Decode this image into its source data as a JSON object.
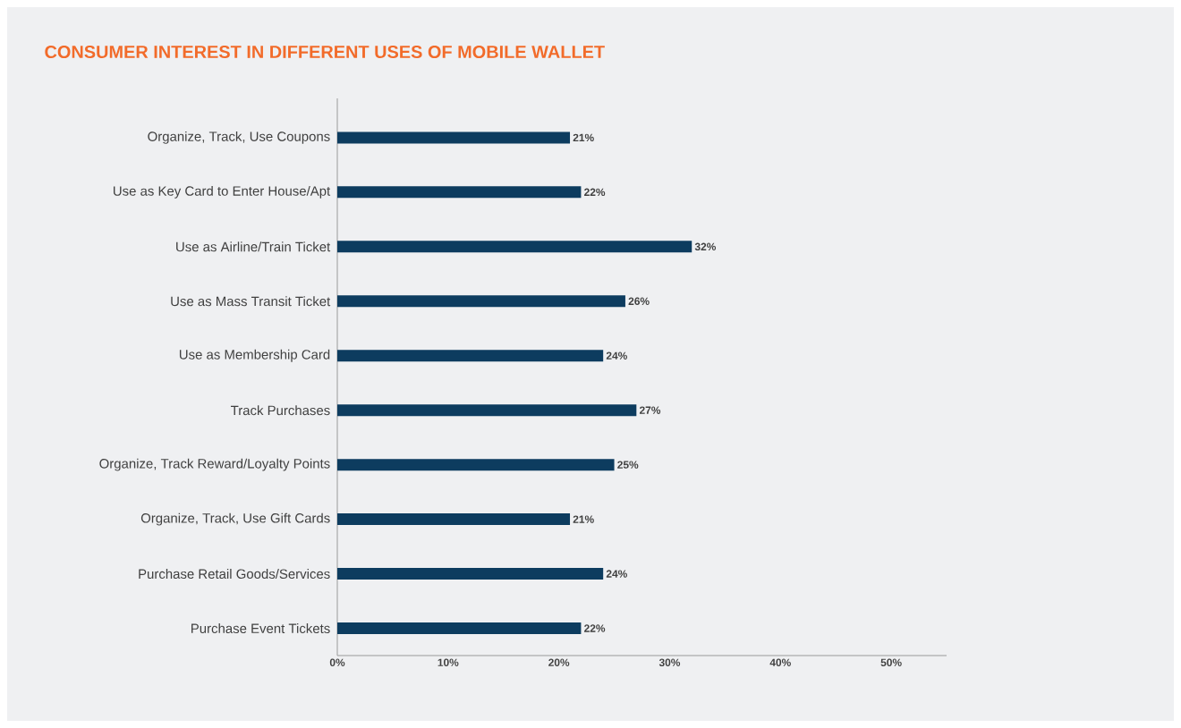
{
  "chart_data": {
    "type": "bar",
    "orientation": "horizontal",
    "title": "CONSUMER INTEREST IN DIFFERENT USES OF MOBILE WALLET",
    "categories": [
      "Organize, Track, Use Coupons",
      "Use as Key Card to Enter House/Apt",
      "Use as Airline/Train Ticket",
      "Use as Mass Transit Ticket",
      "Use as Membership Card",
      "Track Purchases",
      "Organize, Track Reward/Loyalty Points",
      "Organize, Track, Use Gift Cards",
      "Purchase Retail Goods/Services",
      "Purchase Event Tickets"
    ],
    "values": [
      21,
      22,
      32,
      26,
      24,
      27,
      25,
      21,
      24,
      22
    ],
    "value_labels": [
      "21%",
      "22%",
      "32%",
      "26%",
      "24%",
      "27%",
      "25%",
      "21%",
      "24%",
      "22%"
    ],
    "color": "#0d3c5f",
    "xlim": [
      0,
      55
    ],
    "xticks": [
      {
        "value": 0,
        "label": "0%"
      },
      {
        "value": 10,
        "label": "10%"
      },
      {
        "value": 20,
        "label": "20%"
      },
      {
        "value": 30,
        "label": "30%"
      },
      {
        "value": 40,
        "label": "40%"
      },
      {
        "value": 50,
        "label": "50%"
      }
    ],
    "grid": false
  }
}
